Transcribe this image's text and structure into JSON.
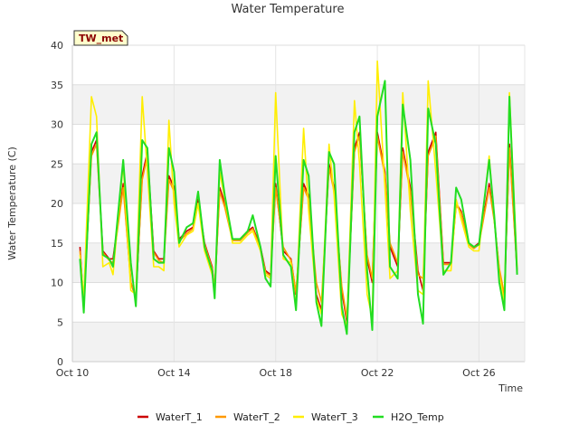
{
  "chart_data": {
    "type": "line",
    "title": "Water Temperature",
    "xlabel": "Time",
    "ylabel": "Water Temperature (C)",
    "badge": "TW_met",
    "xlim": [
      0,
      17.8
    ],
    "ylim": [
      0,
      40
    ],
    "grid": true,
    "legend_position": "bottom",
    "x_ticks": [
      {
        "value": 0,
        "label": "Oct 10"
      },
      {
        "value": 4,
        "label": "Oct 14"
      },
      {
        "value": 8,
        "label": "Oct 18"
      },
      {
        "value": 12,
        "label": "Oct 22"
      },
      {
        "value": 16,
        "label": "Oct 26"
      }
    ],
    "y_ticks": [
      0,
      5,
      10,
      15,
      20,
      25,
      30,
      35,
      40
    ],
    "x": [
      0.3,
      0.45,
      0.75,
      0.95,
      1.2,
      1.45,
      1.6,
      2.0,
      2.3,
      2.5,
      2.75,
      2.95,
      3.2,
      3.4,
      3.6,
      3.8,
      4.0,
      4.2,
      4.5,
      4.75,
      4.95,
      5.2,
      5.5,
      5.6,
      5.8,
      6.0,
      6.3,
      6.6,
      6.9,
      7.1,
      7.4,
      7.6,
      7.8,
      8.0,
      8.3,
      8.6,
      8.8,
      9.1,
      9.3,
      9.6,
      9.8,
      10.1,
      10.3,
      10.6,
      10.8,
      11.1,
      11.3,
      11.6,
      11.8,
      12.0,
      12.3,
      12.5,
      12.8,
      13.0,
      13.3,
      13.6,
      13.8,
      14.0,
      14.3,
      14.6,
      14.9,
      15.1,
      15.3,
      15.6,
      15.8,
      16.0,
      16.4,
      16.6,
      16.8,
      17.0,
      17.2,
      17.5
    ],
    "series": [
      {
        "name": "WaterT_1",
        "color": "#cc0000",
        "values": [
          14.5,
          7.0,
          26.5,
          28.0,
          14.0,
          13.0,
          13.0,
          22.5,
          10.0,
          8.0,
          23.5,
          26.5,
          14.0,
          13.0,
          13.0,
          23.5,
          22.0,
          15.5,
          16.5,
          17.0,
          20.5,
          15.0,
          12.0,
          9.0,
          22.0,
          20.0,
          15.5,
          15.5,
          16.5,
          17.0,
          14.5,
          11.5,
          11.0,
          22.5,
          14.0,
          13.0,
          8.5,
          22.5,
          21.0,
          8.5,
          6.5,
          25.0,
          22.0,
          9.0,
          5.0,
          27.0,
          29.0,
          13.0,
          10.0,
          29.0,
          24.0,
          14.5,
          12.0,
          27.0,
          22.0,
          11.5,
          9.0,
          26.5,
          29.0,
          12.5,
          12.5,
          20.0,
          19.0,
          15.0,
          14.5,
          15.0,
          22.5,
          18.0,
          11.5,
          8.0,
          27.5,
          11.5
        ]
      },
      {
        "name": "WaterT_2",
        "color": "#ff9900",
        "values": [
          14.0,
          7.2,
          26.0,
          27.5,
          13.8,
          12.8,
          12.5,
          22.0,
          10.0,
          8.2,
          23.0,
          26.0,
          13.8,
          12.8,
          12.5,
          23.0,
          21.5,
          15.2,
          16.2,
          16.8,
          20.0,
          14.8,
          11.8,
          9.0,
          21.5,
          19.5,
          15.3,
          15.3,
          16.3,
          16.8,
          14.3,
          11.3,
          10.8,
          22.0,
          14.5,
          12.8,
          8.8,
          22.0,
          20.5,
          10.0,
          7.5,
          24.5,
          21.5,
          9.5,
          5.5,
          26.5,
          28.5,
          13.5,
          10.5,
          28.5,
          23.5,
          15.0,
          12.5,
          26.5,
          21.5,
          11.0,
          10.5,
          26.0,
          28.5,
          12.3,
          12.3,
          19.8,
          18.8,
          14.8,
          14.3,
          14.8,
          22.0,
          17.8,
          11.8,
          8.5,
          27.0,
          11.3
        ]
      },
      {
        "name": "WaterT_3",
        "color": "#ffee00",
        "values": [
          13.5,
          8.0,
          33.5,
          31.0,
          12.0,
          12.5,
          11.0,
          25.0,
          9.0,
          8.5,
          33.5,
          24.0,
          12.0,
          12.0,
          11.5,
          30.5,
          20.0,
          14.5,
          16.0,
          16.5,
          20.0,
          14.0,
          11.0,
          9.5,
          24.0,
          20.5,
          15.0,
          15.0,
          16.0,
          16.5,
          14.0,
          11.0,
          10.5,
          34.0,
          13.0,
          12.5,
          7.0,
          29.5,
          19.0,
          8.0,
          6.0,
          27.5,
          21.0,
          6.0,
          4.5,
          33.0,
          25.0,
          8.5,
          5.5,
          38.0,
          22.0,
          10.5,
          11.5,
          34.0,
          19.0,
          9.0,
          8.5,
          35.5,
          24.0,
          11.5,
          11.5,
          20.5,
          18.0,
          14.5,
          14.0,
          14.0,
          26.0,
          18.0,
          11.0,
          7.5,
          34.0,
          12.0
        ]
      },
      {
        "name": "H2O_Temp",
        "color": "#22dd22",
        "values": [
          13.0,
          6.2,
          27.5,
          29.0,
          13.5,
          13.0,
          12.0,
          25.5,
          12.5,
          7.0,
          28.0,
          27.0,
          13.0,
          12.5,
          12.5,
          27.0,
          24.0,
          15.0,
          17.0,
          17.5,
          21.5,
          14.5,
          11.5,
          8.0,
          25.5,
          21.0,
          15.5,
          15.5,
          16.5,
          18.5,
          14.5,
          10.5,
          9.5,
          26.0,
          13.5,
          12.0,
          6.5,
          25.5,
          23.5,
          7.5,
          4.5,
          26.5,
          25.0,
          7.0,
          3.5,
          29.0,
          31.0,
          11.5,
          4.0,
          31.0,
          35.5,
          12.0,
          10.5,
          32.5,
          25.5,
          8.5,
          4.8,
          32.0,
          27.5,
          11.0,
          12.5,
          22.0,
          20.5,
          15.0,
          14.5,
          14.8,
          25.5,
          18.5,
          10.0,
          6.5,
          33.5,
          11.0
        ]
      }
    ]
  }
}
